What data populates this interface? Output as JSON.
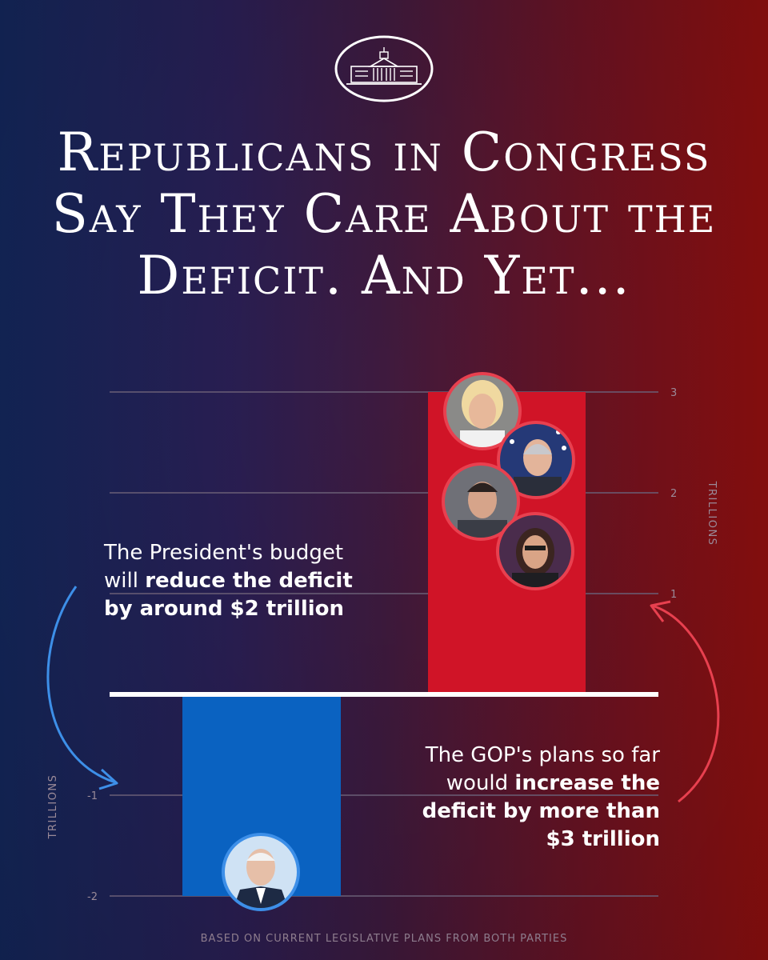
{
  "logo_name": "white-house-logo",
  "headline": "Republicans in Congress Say They Care About the Deficit. And Yet...",
  "annotations": {
    "left": {
      "plain": "The President's budget will ",
      "bold": "reduce the deficit by around $2 trillion"
    },
    "right": {
      "plain": "The GOP's plans so far would ",
      "bold": "increase the deficit by more than $3 trillion"
    }
  },
  "footnote": "BASED ON CURRENT LEGISLATIVE PLANS FROM BOTH PARTIES",
  "colors": {
    "gop_bar": "#d01427",
    "president_bar": "#0a62c1",
    "gop_arrow": "#e8404f",
    "president_arrow": "#3d8fe8",
    "gridline": "#6a5f76",
    "baseline": "#ffffff"
  },
  "chart_data": {
    "type": "bar",
    "categories": [
      "President's budget",
      "GOP plans"
    ],
    "values": [
      -2,
      3
    ],
    "unit": "TRILLIONS",
    "ylim": [
      -2,
      3
    ],
    "yticks": [
      -2,
      -1,
      1,
      2,
      3
    ],
    "grid": true,
    "photos": {
      "gop": [
        "politician-photo-1",
        "politician-photo-2",
        "politician-photo-3",
        "politician-photo-4"
      ],
      "president": [
        "president-photo"
      ]
    }
  }
}
